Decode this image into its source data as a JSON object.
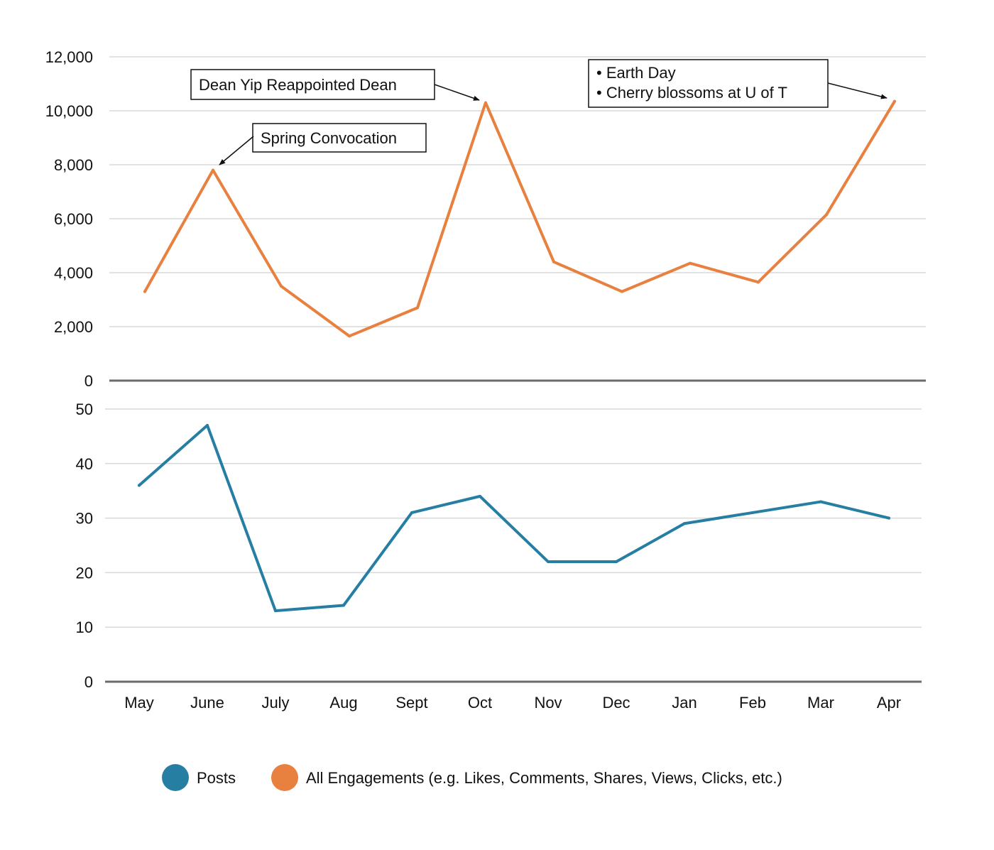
{
  "chart_data": [
    {
      "type": "line",
      "categories": [
        "May",
        "June",
        "July",
        "Aug",
        "Sept",
        "Oct",
        "Nov",
        "Dec",
        "Jan",
        "Feb",
        "Mar",
        "Apr"
      ],
      "series": [
        {
          "name": "All Engagements (e.g. Likes, Comments, Shares, Views, Clicks, etc.)",
          "color": "#e8803f",
          "values": [
            3300,
            7800,
            3500,
            1650,
            2700,
            10300,
            4400,
            3300,
            4350,
            3650,
            6150,
            10350
          ]
        }
      ],
      "ylim": [
        0,
        12000
      ],
      "yticks": [
        "0",
        "2,000",
        "4,000",
        "6,000",
        "8,000",
        "10,000",
        "12,000"
      ],
      "grid": true,
      "annotations": [
        {
          "lines": [
            "Spring Convocation"
          ],
          "category": "June"
        },
        {
          "lines": [
            "Dean Yip Reappointed Dean"
          ],
          "category": "Oct"
        },
        {
          "lines": [
            "• Earth Day",
            "• Cherry blossoms at U of T"
          ],
          "category": "Apr"
        }
      ]
    },
    {
      "type": "line",
      "categories": [
        "May",
        "June",
        "July",
        "Aug",
        "Sept",
        "Oct",
        "Nov",
        "Dec",
        "Jan",
        "Feb",
        "Mar",
        "Apr"
      ],
      "series": [
        {
          "name": "Posts",
          "color": "#267fa3",
          "values": [
            36,
            47,
            13,
            14,
            31,
            34,
            22,
            22,
            29,
            31,
            33,
            30
          ]
        }
      ],
      "ylim": [
        0,
        50
      ],
      "yticks": [
        "0",
        "10",
        "20",
        "30",
        "40",
        "50"
      ],
      "grid": true
    }
  ],
  "legend": {
    "placement": "bottom",
    "items": [
      {
        "label": "Posts",
        "color": "#267fa3"
      },
      {
        "label": "All Engagements (e.g. Likes, Comments, Shares, Views, Clicks, etc.)",
        "color": "#e8803f"
      }
    ]
  }
}
